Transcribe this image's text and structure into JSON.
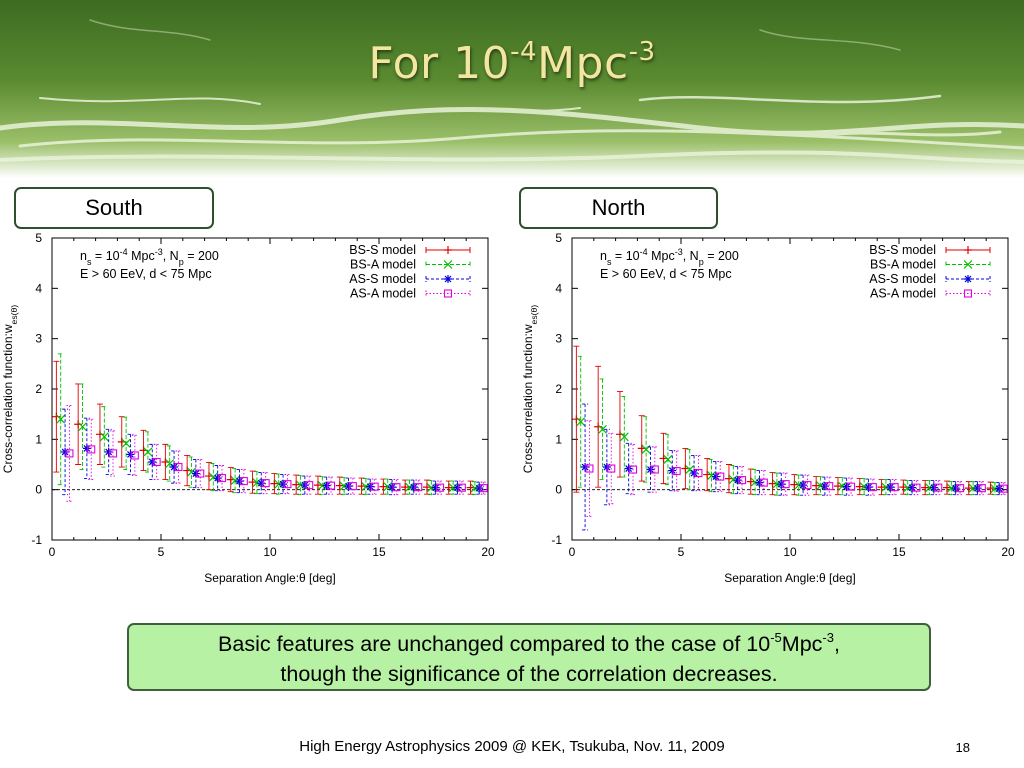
{
  "slide": {
    "title_base": "For 10",
    "title_exp1": "-4",
    "title_unit": "Mpc",
    "title_exp2": "-3",
    "note_line1_a": "Basic features are unchanged compared to the case of 10",
    "note_line1_exp1": "-5",
    "note_line1_b": "Mpc",
    "note_line1_exp2": "-3",
    "note_line1_c": ",",
    "note_line2": "though the significance of the correlation decreases.",
    "footer": "High Energy Astrophysics 2009 @ KEK, Tsukuba, Nov. 11, 2009",
    "page_number": "18"
  },
  "colors": {
    "banner_green": "#4f7d2c",
    "title_text": "#f3e6a0",
    "note_bg": "#b6f1a4",
    "bs_s": "#e00000",
    "bs_a": "#00c000",
    "as_s": "#0000e0",
    "as_a": "#e000e0"
  },
  "chart_data": [
    {
      "type": "scatter",
      "panel_label": "South",
      "xlabel": "Separation Angle:θ [deg]",
      "ylabel": "Cross-correlation function:w_es(θ)",
      "xlim": [
        0,
        20
      ],
      "ylim": [
        -1,
        5
      ],
      "xticks": [
        0,
        5,
        10,
        15,
        20
      ],
      "yticks": [
        -1,
        0,
        1,
        2,
        3,
        4,
        5
      ],
      "grid": false,
      "zero_line": "dashed",
      "legend_position": "top-right",
      "annotation_line1": "n_s = 10^-4 Mpc^-3, N_p = 200",
      "annotation_line2": "E > 60 EeV, d < 75 Mpc",
      "x": [
        0.5,
        1.5,
        2.5,
        3.5,
        4.5,
        5.5,
        6.5,
        7.5,
        8.5,
        9.5,
        10.5,
        11.5,
        12.5,
        13.5,
        14.5,
        15.5,
        16.5,
        17.5,
        18.5,
        19.5
      ],
      "series": [
        {
          "name": "BS-S model",
          "marker": "plus",
          "offset": -0.3,
          "values": [
            1.45,
            1.3,
            1.1,
            0.95,
            0.78,
            0.55,
            0.38,
            0.27,
            0.2,
            0.15,
            0.12,
            0.1,
            0.09,
            0.08,
            0.07,
            0.06,
            0.05,
            0.05,
            0.04,
            0.04
          ],
          "errors": [
            1.1,
            0.8,
            0.6,
            0.5,
            0.4,
            0.35,
            0.3,
            0.27,
            0.24,
            0.22,
            0.2,
            0.19,
            0.18,
            0.17,
            0.16,
            0.15,
            0.14,
            0.14,
            0.13,
            0.13
          ]
        },
        {
          "name": "BS-A model",
          "marker": "cross",
          "offset": -0.1,
          "values": [
            1.4,
            1.25,
            1.05,
            0.92,
            0.75,
            0.52,
            0.35,
            0.25,
            0.18,
            0.14,
            0.11,
            0.09,
            0.08,
            0.07,
            0.06,
            0.06,
            0.05,
            0.04,
            0.04,
            0.03
          ],
          "errors": [
            1.3,
            0.85,
            0.6,
            0.52,
            0.4,
            0.35,
            0.3,
            0.27,
            0.24,
            0.22,
            0.2,
            0.19,
            0.18,
            0.17,
            0.16,
            0.15,
            0.14,
            0.14,
            0.13,
            0.13
          ]
        },
        {
          "name": "AS-S model",
          "marker": "star",
          "offset": 0.1,
          "values": [
            0.75,
            0.82,
            0.75,
            0.7,
            0.55,
            0.45,
            0.32,
            0.23,
            0.17,
            0.13,
            0.11,
            0.09,
            0.08,
            0.07,
            0.06,
            0.05,
            0.05,
            0.04,
            0.04,
            0.03
          ],
          "errors": [
            0.85,
            0.6,
            0.45,
            0.4,
            0.35,
            0.32,
            0.28,
            0.25,
            0.23,
            0.21,
            0.19,
            0.18,
            0.17,
            0.16,
            0.15,
            0.15,
            0.14,
            0.13,
            0.13,
            0.12
          ]
        },
        {
          "name": "AS-A model",
          "marker": "square",
          "offset": 0.3,
          "values": [
            0.72,
            0.8,
            0.72,
            0.68,
            0.55,
            0.45,
            0.32,
            0.23,
            0.17,
            0.13,
            0.11,
            0.09,
            0.08,
            0.07,
            0.06,
            0.05,
            0.05,
            0.04,
            0.04,
            0.03
          ],
          "errors": [
            0.95,
            0.6,
            0.45,
            0.4,
            0.35,
            0.32,
            0.28,
            0.25,
            0.23,
            0.21,
            0.19,
            0.18,
            0.17,
            0.16,
            0.15,
            0.15,
            0.14,
            0.13,
            0.13,
            0.12
          ]
        }
      ]
    },
    {
      "type": "scatter",
      "panel_label": "North",
      "xlabel": "Separation Angle:θ [deg]",
      "ylabel": "Cross-correlation function:w_es(θ)",
      "xlim": [
        0,
        20
      ],
      "ylim": [
        -1,
        5
      ],
      "xticks": [
        0,
        5,
        10,
        15,
        20
      ],
      "yticks": [
        -1,
        0,
        1,
        2,
        3,
        4,
        5
      ],
      "grid": false,
      "zero_line": "dashed",
      "legend_position": "top-right",
      "annotation_line1": "n_s = 10^-4 Mpc^-3, N_p = 200",
      "annotation_line2": "E > 60 EeV, d < 75 Mpc",
      "x": [
        0.5,
        1.5,
        2.5,
        3.5,
        4.5,
        5.5,
        6.5,
        7.5,
        8.5,
        9.5,
        10.5,
        11.5,
        12.5,
        13.5,
        14.5,
        15.5,
        16.5,
        17.5,
        18.5,
        19.5
      ],
      "series": [
        {
          "name": "BS-S model",
          "marker": "plus",
          "offset": -0.3,
          "values": [
            1.4,
            1.25,
            1.1,
            0.82,
            0.62,
            0.42,
            0.3,
            0.22,
            0.16,
            0.12,
            0.1,
            0.08,
            0.07,
            0.06,
            0.05,
            0.05,
            0.04,
            0.04,
            0.03,
            0.03
          ],
          "errors": [
            1.45,
            1.2,
            0.85,
            0.65,
            0.5,
            0.4,
            0.32,
            0.28,
            0.25,
            0.22,
            0.2,
            0.18,
            0.17,
            0.16,
            0.15,
            0.14,
            0.14,
            0.13,
            0.13,
            0.12
          ]
        },
        {
          "name": "BS-A model",
          "marker": "cross",
          "offset": -0.1,
          "values": [
            1.35,
            1.2,
            1.05,
            0.8,
            0.6,
            0.4,
            0.28,
            0.2,
            0.15,
            0.11,
            0.09,
            0.08,
            0.07,
            0.06,
            0.05,
            0.04,
            0.04,
            0.03,
            0.03,
            0.02
          ],
          "errors": [
            1.3,
            1.0,
            0.8,
            0.65,
            0.5,
            0.4,
            0.32,
            0.28,
            0.25,
            0.22,
            0.2,
            0.18,
            0.17,
            0.16,
            0.15,
            0.14,
            0.14,
            0.13,
            0.13,
            0.12
          ]
        },
        {
          "name": "AS-S model",
          "marker": "star",
          "offset": 0.1,
          "values": [
            0.45,
            0.45,
            0.42,
            0.4,
            0.38,
            0.33,
            0.26,
            0.19,
            0.14,
            0.11,
            0.09,
            0.07,
            0.06,
            0.05,
            0.05,
            0.04,
            0.04,
            0.03,
            0.03,
            0.02
          ],
          "errors": [
            1.25,
            0.75,
            0.5,
            0.45,
            0.4,
            0.35,
            0.3,
            0.27,
            0.24,
            0.22,
            0.2,
            0.18,
            0.17,
            0.16,
            0.15,
            0.14,
            0.14,
            0.13,
            0.13,
            0.12
          ]
        },
        {
          "name": "AS-A model",
          "marker": "square",
          "offset": 0.3,
          "values": [
            0.42,
            0.42,
            0.4,
            0.4,
            0.37,
            0.33,
            0.26,
            0.19,
            0.14,
            0.11,
            0.09,
            0.07,
            0.06,
            0.05,
            0.05,
            0.04,
            0.04,
            0.03,
            0.03,
            0.02
          ],
          "errors": [
            0.95,
            0.7,
            0.5,
            0.45,
            0.4,
            0.35,
            0.3,
            0.27,
            0.24,
            0.22,
            0.2,
            0.18,
            0.17,
            0.16,
            0.15,
            0.14,
            0.14,
            0.13,
            0.13,
            0.12
          ]
        }
      ]
    }
  ]
}
